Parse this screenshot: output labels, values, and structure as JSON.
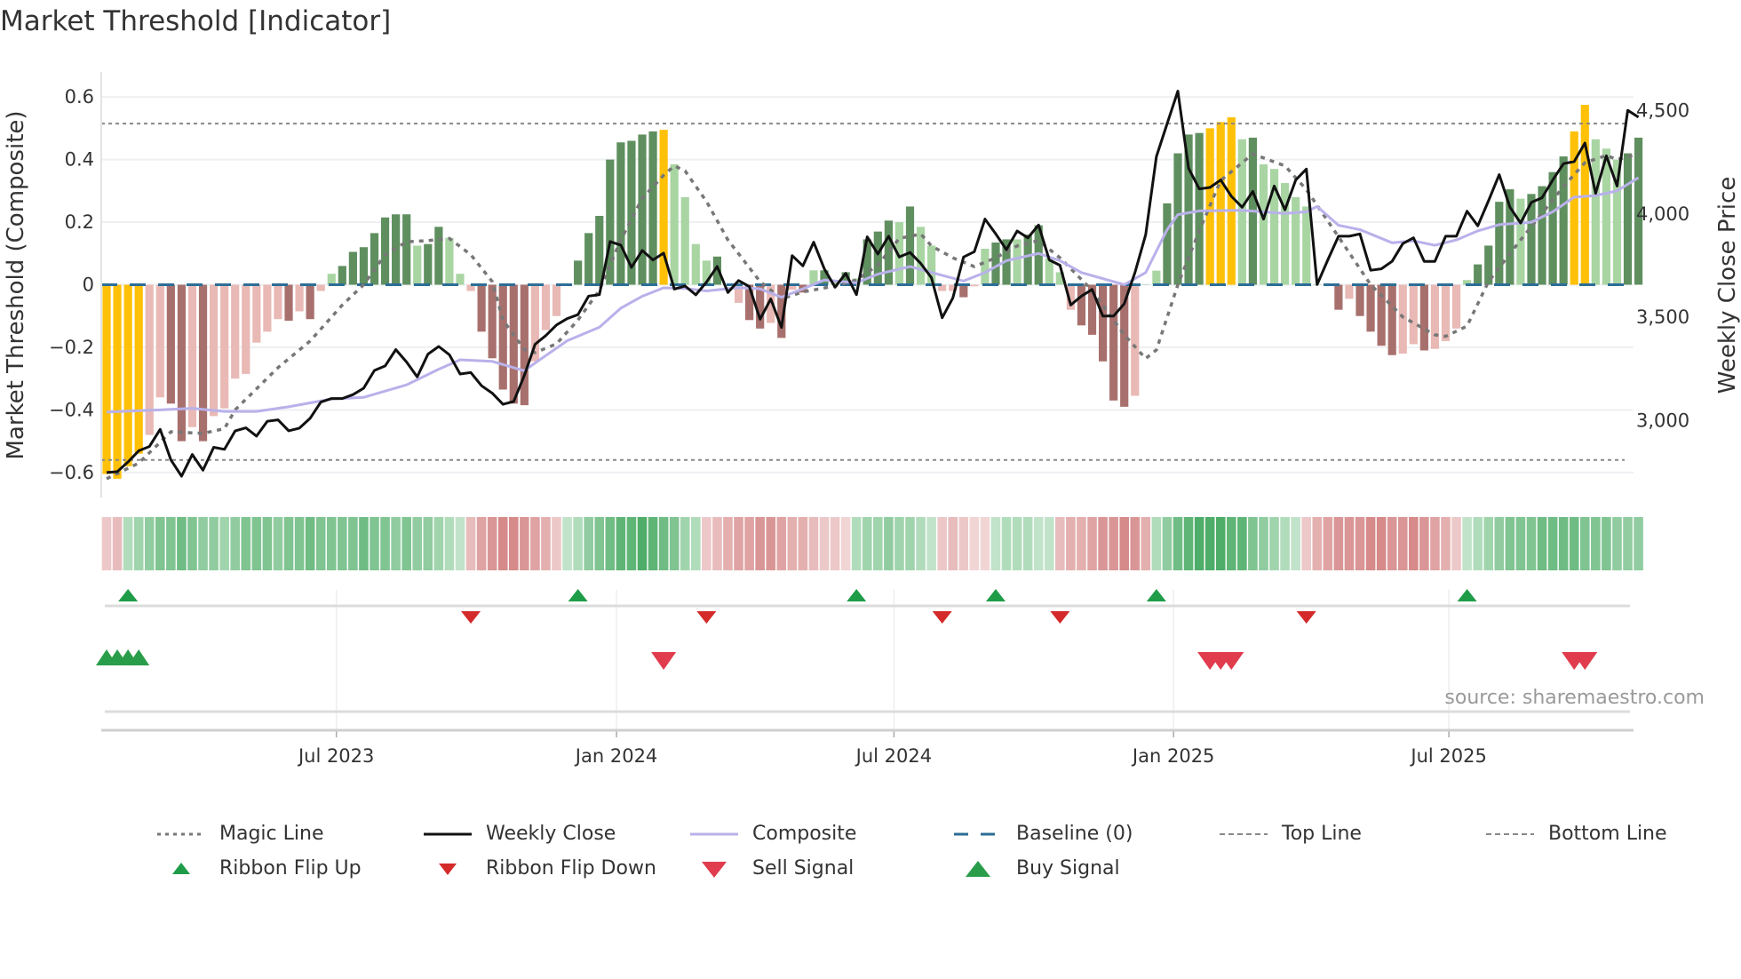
{
  "title": "Market Threshold [Indicator]",
  "source": "source: sharemaestro.com",
  "colors": {
    "peak": "#FFC107",
    "green_strong": "#5F8F5F",
    "green_weak": "#A9D5A3",
    "red_strong": "#A8706D",
    "red_weak": "#E9B9B5",
    "baseline": "#2C6E96",
    "magic": "#777777",
    "composite": "#B9B1EA",
    "close": "#111111",
    "threshold_lines": "#888888",
    "signal_up": "#1E9C48",
    "signal_down": "#D42A2A",
    "buy": "#2A9D4A",
    "sell": "#E03C4E"
  },
  "chart_data": {
    "type": "bar+line",
    "title": "Market Threshold [Indicator]",
    "ylabel": "Market Threshold (Composite)",
    "y2label": "Weekly Close Price",
    "ylim": [
      -0.68,
      0.68
    ],
    "y2lim": [
      2628,
      4688
    ],
    "yticks": [
      {
        "value": 0.6,
        "label": "0.6"
      },
      {
        "value": 0.4,
        "label": "0.4"
      },
      {
        "value": 0.2,
        "label": "0.2"
      },
      {
        "value": 0,
        "label": "0"
      },
      {
        "value": -0.2,
        "label": "−0.2"
      },
      {
        "value": -0.4,
        "label": "−0.4"
      },
      {
        "value": -0.6,
        "label": "−0.6"
      }
    ],
    "y2ticks": [
      {
        "value": 4500,
        "label": "4,500"
      },
      {
        "value": 4000,
        "label": "4,000"
      },
      {
        "value": 3500,
        "label": "3,500"
      },
      {
        "value": 3000,
        "label": "3,000"
      }
    ],
    "xticks": [
      {
        "week_index": 21.45,
        "label": "Jul 2023"
      },
      {
        "week_index": 47.6,
        "label": "Jan 2024"
      },
      {
        "week_index": 73.5,
        "label": "Jul 2024"
      },
      {
        "week_index": 99.6,
        "label": "Jan 2025"
      },
      {
        "week_index": 125.3,
        "label": "Jul 2025"
      }
    ],
    "grid": true,
    "top_line": 0.515,
    "bottom_line": -0.56,
    "baseline": 0,
    "composite_bars": {
      "values": [
        -0.605,
        -0.62,
        -0.58,
        -0.54,
        -0.48,
        -0.36,
        -0.38,
        -0.5,
        -0.455,
        -0.5,
        -0.42,
        -0.395,
        -0.3,
        -0.285,
        -0.185,
        -0.15,
        -0.11,
        -0.115,
        -0.085,
        -0.11,
        -0.02,
        0.035,
        0.06,
        0.105,
        0.12,
        0.165,
        0.215,
        0.225,
        0.225,
        0.125,
        0.13,
        0.185,
        0.15,
        0.035,
        -0.02,
        -0.15,
        -0.235,
        -0.335,
        -0.38,
        -0.385,
        -0.245,
        -0.145,
        -0.1,
        0,
        0.077,
        0.165,
        0.22,
        0.4,
        0.455,
        0.46,
        0.48,
        0.49,
        0.495,
        0.385,
        0.28,
        0.13,
        0.077,
        0.09,
        0,
        -0.058,
        -0.113,
        -0.14,
        -0.122,
        -0.17,
        -0.016,
        -0.025,
        0.046,
        0.046,
        0.01,
        0.04,
        0.02,
        0.145,
        0.17,
        0.205,
        0.2,
        0.25,
        0.185,
        0.125,
        -0.02,
        -0.02,
        -0.04,
        -0.005,
        0.115,
        0.135,
        0.145,
        0.145,
        0.16,
        0.19,
        0.085,
        0.04,
        -0.08,
        -0.13,
        -0.16,
        -0.245,
        -0.37,
        -0.39,
        -0.355,
        0,
        0.045,
        0.26,
        0.42,
        0.48,
        0.485,
        0.5,
        0.52,
        0.535,
        0.465,
        0.47,
        0.385,
        0.37,
        0.325,
        0.28,
        0.25,
        0,
        0,
        -0.08,
        -0.045,
        -0.1,
        -0.15,
        -0.195,
        -0.225,
        -0.22,
        -0.19,
        -0.21,
        -0.205,
        -0.18,
        -0.14,
        0.015,
        0.065,
        0.125,
        0.265,
        0.305,
        0.275,
        0.29,
        0.315,
        0.36,
        0.41,
        0.49,
        0.575,
        0.465,
        0.435,
        0.4,
        0.42,
        0.47
      ],
      "strength": [
        2,
        2,
        2,
        2,
        0,
        0,
        1,
        1,
        0,
        1,
        0,
        0,
        0,
        0,
        0,
        0,
        0,
        1,
        0,
        1,
        0,
        0,
        1,
        1,
        1,
        1,
        1,
        1,
        1,
        0,
        1,
        1,
        0,
        0,
        0,
        1,
        1,
        1,
        1,
        1,
        0,
        0,
        0,
        0,
        1,
        1,
        1,
        1,
        1,
        1,
        1,
        1,
        2,
        0,
        0,
        0,
        0,
        1,
        0,
        0,
        1,
        1,
        0,
        1,
        0,
        1,
        0,
        1,
        0,
        1,
        0,
        1,
        1,
        1,
        0,
        1,
        0,
        0,
        0,
        0,
        1,
        0,
        0,
        1,
        1,
        0,
        1,
        1,
        0,
        0,
        0,
        1,
        1,
        1,
        1,
        1,
        0,
        0,
        0,
        1,
        1,
        1,
        1,
        2,
        2,
        2,
        0,
        1,
        0,
        0,
        0,
        0,
        0,
        0,
        0,
        1,
        0,
        1,
        1,
        1,
        1,
        0,
        0,
        1,
        0,
        0,
        0,
        0,
        1,
        1,
        1,
        1,
        0,
        1,
        1,
        1,
        1,
        2,
        2,
        0,
        0,
        0,
        1,
        1
      ]
    },
    "series": [
      {
        "name": "Weekly Close",
        "axis": "right",
        "values": [
          2749,
          2753,
          2800,
          2854,
          2875,
          2958,
          2810,
          2731,
          2836,
          2760,
          2871,
          2861,
          2950,
          2965,
          2925,
          2997,
          3004,
          2951,
          2964,
          3011,
          3090,
          3107,
          3107,
          3126,
          3157,
          3243,
          3265,
          3344,
          3284,
          3212,
          3322,
          3359,
          3319,
          3226,
          3233,
          3169,
          3133,
          3079,
          3093,
          3219,
          3370,
          3412,
          3463,
          3494,
          3513,
          3603,
          3610,
          3867,
          3850,
          3742,
          3824,
          3778,
          3811,
          3637,
          3652,
          3609,
          3671,
          3746,
          3620,
          3678,
          3649,
          3491,
          3589,
          3451,
          3799,
          3749,
          3864,
          3735,
          3646,
          3713,
          3610,
          3890,
          3807,
          3893,
          3792,
          3814,
          3761,
          3692,
          3498,
          3594,
          3792,
          3818,
          3976,
          3904,
          3828,
          3918,
          3885,
          3947,
          3778,
          3752,
          3560,
          3603,
          3635,
          3506,
          3506,
          3566,
          3718,
          3900,
          4279,
          4437,
          4595,
          4222,
          4122,
          4129,
          4165,
          4086,
          4033,
          4110,
          3976,
          4136,
          4021,
          4165,
          4218,
          3659,
          3778,
          3893,
          3893,
          3904,
          3728,
          3735,
          3771,
          3857,
          3885,
          3771,
          3771,
          3893,
          3893,
          4014,
          3943,
          4064,
          4191,
          4033,
          3957,
          4057,
          4079,
          4165,
          4244,
          4254,
          4344,
          4100,
          4282,
          4136,
          4502,
          4469
        ]
      },
      {
        "name": "Composite",
        "axis": "left",
        "points": [
          [
            0,
            -0.407
          ],
          [
            5,
            -0.4
          ],
          [
            8,
            -0.395
          ],
          [
            11,
            -0.405
          ],
          [
            14,
            -0.405
          ],
          [
            17,
            -0.39
          ],
          [
            21,
            -0.365
          ],
          [
            24,
            -0.36
          ],
          [
            28,
            -0.32
          ],
          [
            31,
            -0.27
          ],
          [
            33,
            -0.24
          ],
          [
            36,
            -0.245
          ],
          [
            39,
            -0.275
          ],
          [
            40,
            -0.25
          ],
          [
            43,
            -0.179
          ],
          [
            46,
            -0.136
          ],
          [
            48,
            -0.075
          ],
          [
            50,
            -0.037
          ],
          [
            52,
            -0.01
          ],
          [
            54,
            -0.012
          ],
          [
            56,
            -0.02
          ],
          [
            59,
            -0.009
          ],
          [
            61,
            -0.013
          ],
          [
            63,
            -0.04
          ],
          [
            65,
            -0.013
          ],
          [
            67,
            0.015
          ],
          [
            70,
            0.006
          ],
          [
            72,
            0.034
          ],
          [
            75,
            0.058
          ],
          [
            78,
            0.03
          ],
          [
            80,
            0.012
          ],
          [
            82,
            0.039
          ],
          [
            84,
            0.077
          ],
          [
            87,
            0.1
          ],
          [
            89,
            0.077
          ],
          [
            91,
            0.039
          ],
          [
            94,
            0.01
          ],
          [
            95,
            0
          ],
          [
            97,
            0.039
          ],
          [
            99,
            0.176
          ],
          [
            100,
            0.224
          ],
          [
            102,
            0.236
          ],
          [
            106,
            0.238
          ],
          [
            110,
            0.228
          ],
          [
            112,
            0.233
          ],
          [
            113,
            0.25
          ],
          [
            115,
            0.19
          ],
          [
            117,
            0.176
          ],
          [
            120,
            0.134
          ],
          [
            122,
            0.14
          ],
          [
            124,
            0.126
          ],
          [
            126,
            0.143
          ],
          [
            128,
            0.172
          ],
          [
            130,
            0.192
          ],
          [
            133,
            0.2
          ],
          [
            135,
            0.233
          ],
          [
            137,
            0.28
          ],
          [
            139,
            0.285
          ],
          [
            141,
            0.3
          ],
          [
            143,
            0.342
          ]
        ]
      },
      {
        "name": "Magic Line",
        "axis": "left",
        "points": [
          [
            0,
            -0.62
          ],
          [
            3,
            -0.57
          ],
          [
            6,
            -0.47
          ],
          [
            9,
            -0.475
          ],
          [
            11,
            -0.46
          ],
          [
            12,
            -0.4
          ],
          [
            16,
            -0.265
          ],
          [
            19,
            -0.18
          ],
          [
            22,
            -0.065
          ],
          [
            24,
            0
          ],
          [
            26,
            0.096
          ],
          [
            28,
            0.137
          ],
          [
            30,
            0.141
          ],
          [
            32,
            0.148
          ],
          [
            34,
            0.096
          ],
          [
            36,
            0.01
          ],
          [
            37,
            -0.113
          ],
          [
            39,
            -0.207
          ],
          [
            40,
            -0.217
          ],
          [
            42,
            -0.189
          ],
          [
            44,
            -0.113
          ],
          [
            46,
            -0.018
          ],
          [
            48,
            0.143
          ],
          [
            50,
            0.276
          ],
          [
            52,
            0.35
          ],
          [
            53,
            0.38
          ],
          [
            54,
            0.364
          ],
          [
            56,
            0.266
          ],
          [
            58,
            0.143
          ],
          [
            61,
            0.01
          ],
          [
            63,
            -0.045
          ],
          [
            65,
            -0.023
          ],
          [
            68,
            -0.004
          ],
          [
            70,
            0.015
          ],
          [
            72,
            0.063
          ],
          [
            74,
            0.148
          ],
          [
            76,
            0.162
          ],
          [
            77,
            0.124
          ],
          [
            79,
            0.086
          ],
          [
            81,
            0.058
          ],
          [
            83,
            0.086
          ],
          [
            85,
            0.124
          ],
          [
            87,
            0.141
          ],
          [
            89,
            0.086
          ],
          [
            92,
            -0.018
          ],
          [
            95,
            -0.16
          ],
          [
            97,
            -0.236
          ],
          [
            98,
            -0.208
          ],
          [
            100,
            0
          ],
          [
            102,
            0.172
          ],
          [
            104,
            0.333
          ],
          [
            107,
            0.418
          ],
          [
            110,
            0.38
          ],
          [
            112,
            0.304
          ],
          [
            115,
            0.153
          ],
          [
            118,
            0
          ],
          [
            121,
            -0.103
          ],
          [
            124,
            -0.16
          ],
          [
            125,
            -0.165
          ],
          [
            127,
            -0.132
          ],
          [
            129,
            0.01
          ],
          [
            132,
            0.143
          ],
          [
            134,
            0.228
          ],
          [
            136,
            0.314
          ],
          [
            138,
            0.39
          ],
          [
            140,
            0.413
          ],
          [
            141,
            0.4
          ],
          [
            143,
            0.418
          ]
        ]
      }
    ],
    "ribbon": [
      -0.2,
      -0.3,
      0.3,
      0.4,
      0.5,
      0.6,
      0.6,
      0.7,
      0.6,
      0.5,
      0.5,
      0.4,
      0.5,
      0.6,
      0.6,
      0.6,
      0.5,
      0.6,
      0.6,
      0.7,
      0.6,
      0.6,
      0.6,
      0.6,
      0.7,
      0.6,
      0.6,
      0.5,
      0.6,
      0.5,
      0.5,
      0.4,
      0.3,
      0.2,
      -0.3,
      -0.5,
      -0.6,
      -0.7,
      -0.7,
      -0.6,
      -0.5,
      -0.4,
      -0.2,
      0.2,
      0.3,
      0.5,
      0.6,
      0.7,
      0.8,
      0.8,
      0.9,
      0.8,
      0.7,
      0.6,
      0.4,
      0.3,
      -0.2,
      -0.3,
      -0.4,
      -0.5,
      -0.5,
      -0.6,
      -0.6,
      -0.5,
      -0.4,
      -0.4,
      -0.3,
      -0.2,
      -0.2,
      -0.1,
      0.3,
      0.4,
      0.4,
      0.5,
      0.4,
      0.4,
      0.3,
      0.2,
      -0.2,
      -0.3,
      -0.2,
      -0.1,
      -0.1,
      0.2,
      0.3,
      0.3,
      0.3,
      0.2,
      0.2,
      -0.3,
      -0.4,
      -0.4,
      -0.5,
      -0.6,
      -0.6,
      -0.7,
      -0.6,
      -0.4,
      0.3,
      0.5,
      0.7,
      0.8,
      0.9,
      0.9,
      0.9,
      0.8,
      0.8,
      0.6,
      0.5,
      0.4,
      0.3,
      0.2,
      -0.2,
      -0.4,
      -0.5,
      -0.6,
      -0.6,
      -0.6,
      -0.7,
      -0.7,
      -0.6,
      -0.6,
      -0.7,
      -0.6,
      -0.5,
      -0.4,
      -0.2,
      0.2,
      0.3,
      0.4,
      0.5,
      0.6,
      0.6,
      0.6,
      0.7,
      0.7,
      0.7,
      0.7,
      0.6,
      0.6,
      0.6,
      0.5,
      0.5,
      0.5
    ],
    "ribbon_flip_up": [
      2,
      44,
      70,
      83,
      98,
      127
    ],
    "ribbon_flip_down": [
      34,
      56,
      78,
      89,
      112
    ],
    "buy_signals": [
      0,
      1,
      2,
      3
    ],
    "sell_signals": [
      52,
      103,
      104,
      105,
      137,
      138
    ]
  },
  "legend": [
    {
      "key": "magic",
      "label": "Magic Line"
    },
    {
      "key": "close",
      "label": "Weekly Close"
    },
    {
      "key": "composite",
      "label": "Composite"
    },
    {
      "key": "baseline",
      "label": "Baseline (0)"
    },
    {
      "key": "top",
      "label": "Top Line"
    },
    {
      "key": "bottom",
      "label": "Bottom Line"
    },
    {
      "key": "flip_up",
      "label": "Ribbon Flip Up"
    },
    {
      "key": "flip_down",
      "label": "Ribbon Flip Down"
    },
    {
      "key": "sell",
      "label": "Sell Signal"
    },
    {
      "key": "buy",
      "label": "Buy Signal"
    }
  ]
}
